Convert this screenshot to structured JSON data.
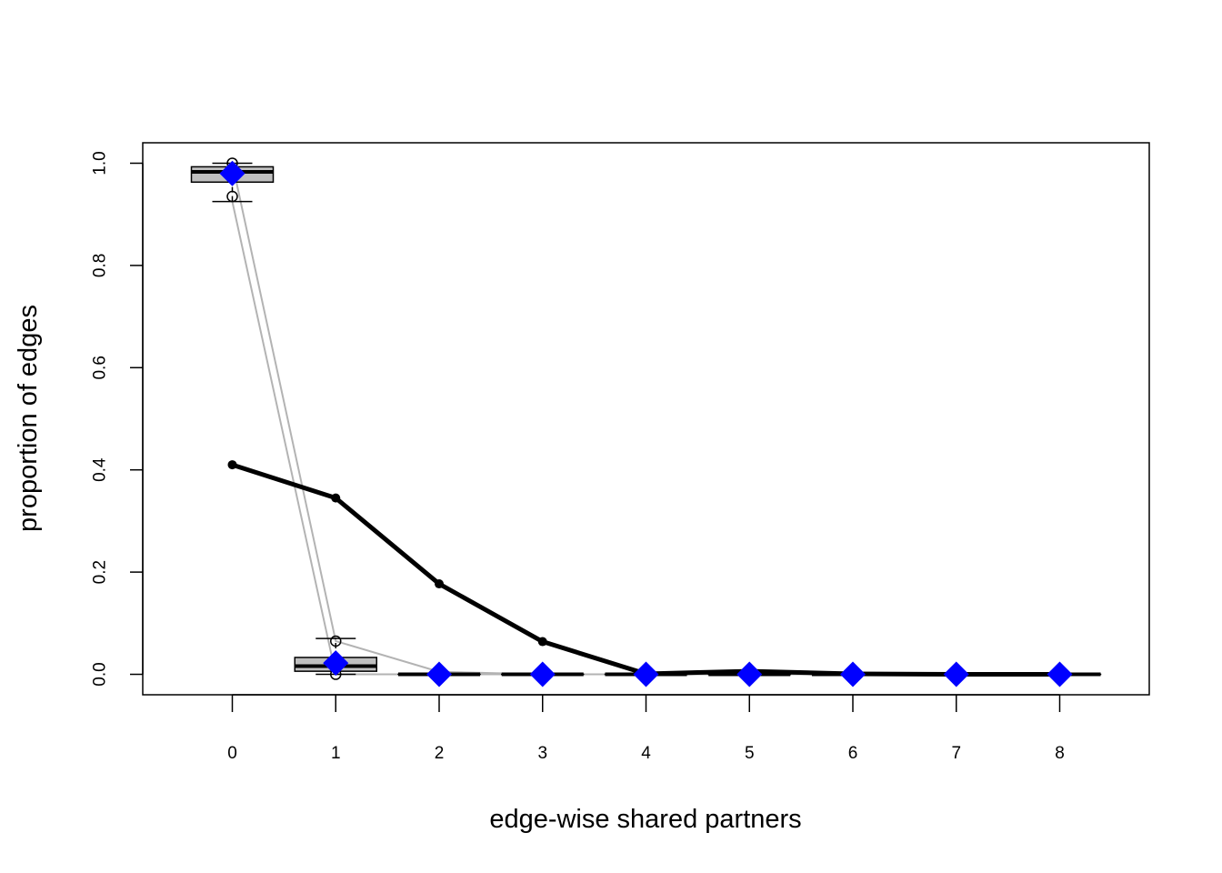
{
  "chart_data": {
    "type": "boxplot",
    "title": "",
    "xlabel": "edge-wise shared partners",
    "ylabel": "proportion of edges",
    "categories": [
      "0",
      "1",
      "2",
      "3",
      "4",
      "5",
      "6",
      "7",
      "8"
    ],
    "ylim": [
      -0.04,
      1.04
    ],
    "y_ticks": [
      "0.0",
      "0.2",
      "0.4",
      "0.6",
      "0.8",
      "1.0"
    ],
    "grid": false,
    "legend": "none",
    "observed": {
      "color": "#000000",
      "values": [
        0.41,
        0.345,
        0.177,
        0.064,
        0.001,
        0.006,
        0.001,
        0.0,
        0.0
      ]
    },
    "simulated_mean": {
      "color": "#0000ff",
      "values": [
        0.98,
        0.022,
        0.0,
        0.0,
        0.0,
        0.0,
        0.0,
        0.0,
        0.0
      ]
    },
    "simulated_boxes": [
      {
        "whisker_low": 0.925,
        "q1": 0.963,
        "median": 0.983,
        "q3": 0.993,
        "whisker_high": 1.0,
        "outliers": [
          1.0,
          0.935
        ]
      },
      {
        "whisker_low": 0.0,
        "q1": 0.006,
        "median": 0.016,
        "q3": 0.033,
        "whisker_high": 0.07,
        "outliers": [
          0.065,
          0.0
        ]
      },
      {
        "whisker_low": 0.0,
        "q1": 0.0,
        "median": 0.0,
        "q3": 0.0,
        "whisker_high": 0.0,
        "outliers": []
      },
      {
        "whisker_low": 0.0,
        "q1": 0.0,
        "median": 0.0,
        "q3": 0.0,
        "whisker_high": 0.0,
        "outliers": []
      },
      {
        "whisker_low": 0.0,
        "q1": 0.0,
        "median": 0.0,
        "q3": 0.0,
        "whisker_high": 0.0,
        "outliers": []
      },
      {
        "whisker_low": 0.0,
        "q1": 0.0,
        "median": 0.0,
        "q3": 0.0,
        "whisker_high": 0.0,
        "outliers": []
      },
      {
        "whisker_low": 0.0,
        "q1": 0.0,
        "median": 0.0,
        "q3": 0.0,
        "whisker_high": 0.0,
        "outliers": []
      },
      {
        "whisker_low": 0.0,
        "q1": 0.0,
        "median": 0.0,
        "q3": 0.0,
        "whisker_high": 0.0,
        "outliers": []
      },
      {
        "whisker_low": 0.0,
        "q1": 0.0,
        "median": 0.0,
        "q3": 0.0,
        "whisker_high": 0.0,
        "outliers": []
      }
    ],
    "simulation_range_lines": {
      "color": "#b3b3b3",
      "lower": [
        0.925,
        0.0,
        0.0,
        0.0,
        0.0,
        0.0,
        0.0,
        0.0,
        0.0
      ],
      "upper": [
        1.0,
        0.065,
        0.005,
        0.0,
        0.0,
        0.0,
        0.0,
        0.0,
        0.0
      ]
    }
  }
}
